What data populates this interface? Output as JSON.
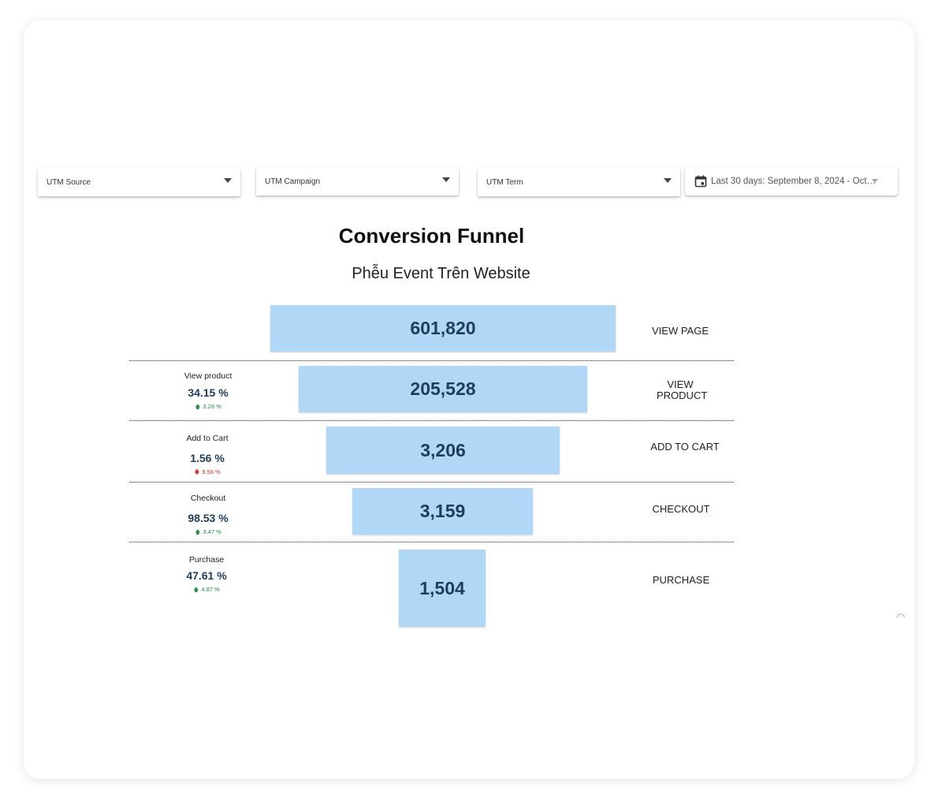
{
  "filters": {
    "utm_source": "UTM Source",
    "utm_campaign": "UTM Campaign",
    "utm_term": "UTM Term",
    "date_range": "Last 30 days: September 8, 2024 - Oct…"
  },
  "header": {
    "title": "Conversion Funnel",
    "subtitle": "Phễu Event Trên Website"
  },
  "funnel": [
    {
      "stage": "VIEW PAGE",
      "value": "601,820"
    },
    {
      "stage": "VIEW PRODUCT",
      "value": "205,528",
      "metric_name": "View product",
      "rate": "34.15 %",
      "delta": "3.26 %",
      "trend": "up"
    },
    {
      "stage": "ADD TO CART",
      "value": "3,206",
      "metric_name": "Add to Cart",
      "rate": "1.56 %",
      "delta": "9.56 %",
      "trend": "down"
    },
    {
      "stage": "CHECKOUT",
      "value": "3,159",
      "metric_name": "Checkout",
      "rate": "98.53 %",
      "delta": "3.47 %",
      "trend": "up"
    },
    {
      "stage": "PURCHASE",
      "value": "1,504",
      "metric_name": "Purchase",
      "rate": "47.61 %",
      "delta": "4.87 %",
      "trend": "up"
    }
  ],
  "chart_data": {
    "type": "bar",
    "categories": [
      "VIEW PAGE",
      "VIEW PRODUCT",
      "ADD TO CART",
      "CHECKOUT",
      "PURCHASE"
    ],
    "values": [
      601820,
      205528,
      3206,
      3159,
      1504
    ]
  },
  "colors": {
    "bar": "#b0d8f6",
    "value_text": "#1e3d5a",
    "trend_up": "#1e8e3e",
    "trend_down": "#d93025"
  },
  "icons": {
    "calendar": "calendar-icon",
    "caret": "caret-down-icon",
    "trend_up": "arrow-up-icon",
    "trend_down": "arrow-down-icon"
  }
}
